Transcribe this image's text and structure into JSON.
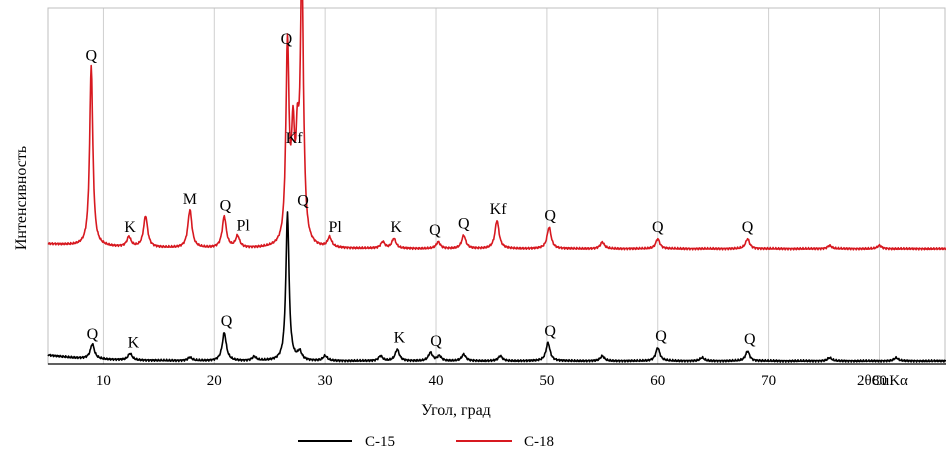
{
  "chart_data": {
    "type": "line",
    "xlabel": "Угол, град",
    "x_unit_label": "2θCuKα",
    "ylabel": "Интенсивность",
    "xlim": [
      5,
      86
    ],
    "x_ticks": [
      10,
      20,
      30,
      40,
      50,
      60,
      70,
      80
    ],
    "grid": "vertical",
    "legend_position": "bottom",
    "series": [
      {
        "name": "С-15",
        "color": "#000000",
        "baseline": 0,
        "peaks": [
          {
            "x": 9.0,
            "y": 4.5
          },
          {
            "x": 12.4,
            "y": 2.0
          },
          {
            "x": 17.8,
            "y": 1.0
          },
          {
            "x": 20.9,
            "y": 8.5
          },
          {
            "x": 23.6,
            "y": 1.2
          },
          {
            "x": 26.6,
            "y": 45.0
          },
          {
            "x": 27.7,
            "y": 2.5
          },
          {
            "x": 30.0,
            "y": 1.5
          },
          {
            "x": 35.0,
            "y": 1.5
          },
          {
            "x": 36.5,
            "y": 3.5
          },
          {
            "x": 39.5,
            "y": 2.5
          },
          {
            "x": 40.3,
            "y": 1.5
          },
          {
            "x": 42.5,
            "y": 2.0
          },
          {
            "x": 45.8,
            "y": 1.5
          },
          {
            "x": 50.1,
            "y": 5.5
          },
          {
            "x": 55.0,
            "y": 1.5
          },
          {
            "x": 60.0,
            "y": 4.0
          },
          {
            "x": 64.0,
            "y": 1.0
          },
          {
            "x": 68.1,
            "y": 3.0
          },
          {
            "x": 75.5,
            "y": 1.0
          },
          {
            "x": 81.5,
            "y": 1.0
          }
        ]
      },
      {
        "name": "С-18",
        "color": "#d71920",
        "baseline": 34,
        "peaks": [
          {
            "x": 8.9,
            "y": 55.0
          },
          {
            "x": 12.3,
            "y": 3.0
          },
          {
            "x": 13.8,
            "y": 9.5
          },
          {
            "x": 17.8,
            "y": 11.5
          },
          {
            "x": 20.9,
            "y": 9.5
          },
          {
            "x": 22.1,
            "y": 3.5
          },
          {
            "x": 26.6,
            "y": 60.0
          },
          {
            "x": 27.1,
            "y": 30.0
          },
          {
            "x": 27.5,
            "y": 25.0
          },
          {
            "x": 27.9,
            "y": 82.0
          },
          {
            "x": 30.4,
            "y": 3.0
          },
          {
            "x": 35.2,
            "y": 2.0
          },
          {
            "x": 36.2,
            "y": 3.0
          },
          {
            "x": 40.2,
            "y": 2.0
          },
          {
            "x": 42.5,
            "y": 4.0
          },
          {
            "x": 45.5,
            "y": 8.5
          },
          {
            "x": 50.2,
            "y": 6.5
          },
          {
            "x": 55.0,
            "y": 2.0
          },
          {
            "x": 60.0,
            "y": 3.0
          },
          {
            "x": 68.1,
            "y": 3.0
          },
          {
            "x": 75.5,
            "y": 1.0
          },
          {
            "x": 80.0,
            "y": 1.0
          }
        ]
      }
    ],
    "annotations": [
      {
        "series": "С-18",
        "text": "Q",
        "x": 8.9,
        "y": 55.0
      },
      {
        "series": "С-18",
        "text": "K",
        "x": 12.4,
        "y": 3.0
      },
      {
        "series": "С-18",
        "text": "M",
        "x": 17.8,
        "y": 11.5
      },
      {
        "series": "С-18",
        "text": "Q",
        "x": 21.0,
        "y": 9.5
      },
      {
        "series": "С-18",
        "text": "Pl",
        "x": 22.6,
        "y": 3.5
      },
      {
        "series": "С-18",
        "text": "Q",
        "x": 26.5,
        "y": 60.0
      },
      {
        "series": "С-18",
        "text": "Kf",
        "x": 27.2,
        "y": 30.0
      },
      {
        "series": "С-18",
        "text": "Kf",
        "x": 28.9,
        "y": 82.0
      },
      {
        "series": "С-18",
        "text": "Pl",
        "x": 30.9,
        "y": 3.0
      },
      {
        "series": "С-18",
        "text": "K",
        "x": 36.4,
        "y": 3.0
      },
      {
        "series": "С-18",
        "text": "Q",
        "x": 39.9,
        "y": 2.0
      },
      {
        "series": "С-18",
        "text": "Q",
        "x": 42.5,
        "y": 4.0
      },
      {
        "series": "С-18",
        "text": "Kf",
        "x": 45.6,
        "y": 8.5
      },
      {
        "series": "С-18",
        "text": "Q",
        "x": 50.3,
        "y": 6.5
      },
      {
        "series": "С-18",
        "text": "Q",
        "x": 60.0,
        "y": 3.0
      },
      {
        "series": "С-18",
        "text": "Q",
        "x": 68.1,
        "y": 3.0
      },
      {
        "series": "С-15",
        "text": "Q",
        "x": 28.0,
        "y": 45.0
      },
      {
        "series": "С-15",
        "text": "Q",
        "x": 9.0,
        "y": 4.5
      },
      {
        "series": "С-15",
        "text": "K",
        "x": 12.7,
        "y": 2.0
      },
      {
        "series": "С-15",
        "text": "Q",
        "x": 21.1,
        "y": 8.5
      },
      {
        "series": "С-15",
        "text": "K",
        "x": 36.7,
        "y": 3.5
      },
      {
        "series": "С-15",
        "text": "Q",
        "x": 40.0,
        "y": 2.5
      },
      {
        "series": "С-15",
        "text": "Q",
        "x": 50.3,
        "y": 5.5
      },
      {
        "series": "С-15",
        "text": "Q",
        "x": 60.3,
        "y": 4.0
      },
      {
        "series": "С-15",
        "text": "Q",
        "x": 68.3,
        "y": 3.0
      }
    ]
  }
}
